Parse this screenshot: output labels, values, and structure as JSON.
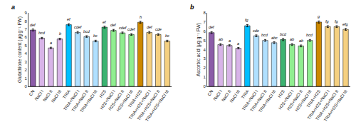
{
  "chart_data": [
    {
      "type": "bar",
      "title": "a",
      "categories": [
        "CN",
        "NaCl I",
        "NaCl II",
        "NaCl III",
        "TRIA",
        "TRIA+NaCl I",
        "TRIA+NaCl II",
        "TRIA+NaCl III",
        "H2S",
        "H2S+NaCl I",
        "H2S+NaCl II",
        "H2S+NaCl III",
        "TRIA+H2S",
        "TRIA+H2S+NaCl I",
        "TRIA+H2S+NaCl II",
        "TRIA+H2S+NaCl III"
      ],
      "values": [
        6.9,
        5.9,
        4.7,
        5.8,
        7.55,
        6.6,
        6.1,
        5.55,
        7.25,
        6.85,
        6.55,
        6.35,
        7.85,
        6.6,
        6.35,
        5.55
      ],
      "errors": [
        0.12,
        0.1,
        0.09,
        0.1,
        0.12,
        0.12,
        0.1,
        0.1,
        0.12,
        0.12,
        0.1,
        0.1,
        0.12,
        0.12,
        0.1,
        0.1
      ],
      "annotations": [
        "def",
        "bcd",
        "a",
        "b",
        "ef",
        "cdef",
        "bcd",
        "bc",
        "ef",
        "def",
        "cdef",
        "cdef",
        "h",
        "def",
        "cde",
        "bc"
      ],
      "ylabel": "Glutathione content (µg g⁻¹ FW)",
      "ylim": [
        0,
        9
      ],
      "yticks": [
        0,
        1,
        2,
        3,
        4,
        5,
        6,
        7,
        8,
        9
      ],
      "colors": [
        "#8B5CA8",
        "#D8B4E8",
        "#D8B4E8",
        "#D8B4E8",
        "#00BFFF",
        "#B0E0FF",
        "#B0E0FF",
        "#B0E0FF",
        "#3CB371",
        "#90EE90",
        "#90EE90",
        "#90EE90",
        "#CC8800",
        "#F5D080",
        "#F5D080",
        "#F5D080"
      ],
      "grid": false
    },
    {
      "type": "bar",
      "title": "b",
      "categories": [
        "CN",
        "NaCl I",
        "NaCl II",
        "NaCl III",
        "TRIA",
        "TRIA+NaCl I",
        "TRIA+NaCl II",
        "TRIA+NaCl III",
        "H2S",
        "H2S+NaCl I",
        "H2S+NaCl II",
        "H2S+NaCl III",
        "TRIA+H2S",
        "TRIA+H2S+NaCl I",
        "TRIA+H2S+NaCl II",
        "TRIA+H2S+NaCl III"
      ],
      "values": [
        5.85,
        4.55,
        4.45,
        4.15,
        6.6,
        5.5,
        5.0,
        4.75,
        5.1,
        4.55,
        4.4,
        5.0,
        7.0,
        6.5,
        6.5,
        6.2
      ],
      "errors": [
        0.1,
        0.1,
        0.08,
        0.08,
        0.12,
        0.1,
        0.1,
        0.1,
        0.12,
        0.1,
        0.1,
        0.1,
        0.12,
        0.1,
        0.1,
        0.1
      ],
      "annotations": [
        "def",
        "ab",
        "a",
        "a",
        "fg",
        "cde",
        "bcd",
        "abc",
        "bcd",
        "ab",
        "ab",
        "bcd",
        "g",
        "fg",
        "fg",
        "efg"
      ],
      "ylabel": "Ascorbic acid (µg g⁻¹ FW)",
      "ylim": [
        0,
        8
      ],
      "yticks": [
        0,
        1,
        2,
        3,
        4,
        5,
        6,
        7,
        8
      ],
      "colors": [
        "#8B5CA8",
        "#D8B4E8",
        "#D8B4E8",
        "#D8B4E8",
        "#00BFFF",
        "#B0E0FF",
        "#B0E0FF",
        "#B0E0FF",
        "#3CB371",
        "#90EE90",
        "#90EE90",
        "#90EE90",
        "#CC8800",
        "#F5D080",
        "#F5D080",
        "#F5D080"
      ],
      "grid": false
    }
  ]
}
